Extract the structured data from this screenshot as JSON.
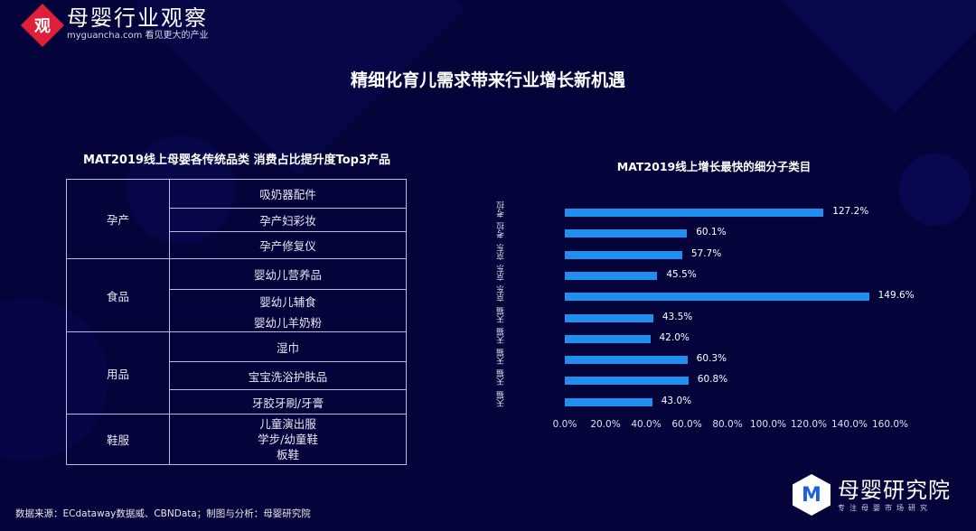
{
  "header": {
    "logo_mark": "观",
    "logo_name": "母婴行业观察",
    "logo_sub": "myguancha.com 看见更大的产业",
    "title": "精细化育儿需求带来行业增长新机遇"
  },
  "table": {
    "title": "MAT2019线上母婴各传统品类 消费占比提升度Top3产品",
    "groups": [
      {
        "category": "孕产",
        "items": [
          "吸奶器配件",
          "孕产妇彩妆",
          "孕产修复仪"
        ]
      },
      {
        "category": "食品",
        "items": [
          "婴幼儿营养品",
          "婴幼儿辅食",
          "婴幼儿羊奶粉"
        ]
      },
      {
        "category": "用品",
        "items": [
          "湿巾",
          "宝宝洗浴护肤品",
          "牙胶牙刷/牙膏"
        ]
      },
      {
        "category": "鞋服",
        "items": [
          "儿童演出服",
          "学步/幼童鞋",
          "板鞋"
        ]
      }
    ]
  },
  "chart_data": {
    "type": "bar",
    "orientation": "horizontal",
    "title": "MAT2019线上增长最快的细分子类目",
    "categories": [
      "儿童箱包",
      "宝宝安全用品",
      "口腔清洁",
      "学步车",
      "滑板车",
      "婴幼儿营养品",
      "玩具/益智",
      "驱蚊驱螨",
      "清洁液",
      "零食"
    ],
    "platforms": [
      "考拉",
      "考拉",
      "京东",
      "京东",
      "京东",
      "天猫",
      "天猫",
      "天猫",
      "天猫",
      "天猫"
    ],
    "values": [
      127.2,
      60.1,
      57.7,
      45.5,
      149.6,
      43.5,
      42.0,
      60.3,
      60.8,
      43.0
    ],
    "value_labels": [
      "127.2%",
      "60.1%",
      "57.7%",
      "45.5%",
      "149.6%",
      "43.5%",
      "42.0%",
      "60.3%",
      "60.8%",
      "43.0%"
    ],
    "xlim": [
      0,
      160
    ],
    "xticks": [
      "0.0%",
      "20.0%",
      "40.0%",
      "60.0%",
      "80.0%",
      "100.0%",
      "120.0%",
      "140.0%",
      "160.0%"
    ],
    "xlabel": "",
    "ylabel": "",
    "grid": false,
    "bar_color": "#2090f0"
  },
  "footer": {
    "source": "数据来源：ECdataway数据威、CBNData；制图与分析：母婴研究院",
    "brand_name": "母婴研究院",
    "brand_sub": "专注母婴市场研究",
    "brand_mark": "M"
  }
}
